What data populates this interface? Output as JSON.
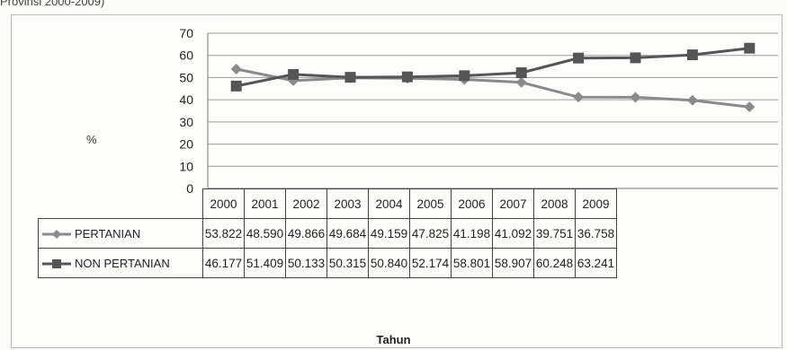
{
  "caption": "Provinsi 2000-2009)",
  "chart_data": {
    "type": "line",
    "title": "",
    "xlabel": "Tahun",
    "ylabel": "%",
    "ylim": [
      0,
      70
    ],
    "yticks": [
      "0",
      "10",
      "20",
      "30",
      "40",
      "50",
      "60",
      "70"
    ],
    "grid": true,
    "legend": "table-left",
    "categories": [
      "2000",
      "2001",
      "2002",
      "2003",
      "2004",
      "2005",
      "2006",
      "2007",
      "2008",
      "2009"
    ],
    "series": [
      {
        "name": "PERTANIAN",
        "marker": "diamond",
        "color": "#8a8a8a",
        "values": [
          53.822,
          48.59,
          49.866,
          49.684,
          49.159,
          47.825,
          41.198,
          41.092,
          39.751,
          36.758
        ],
        "labels": [
          "53.822",
          "48.590",
          "49.866",
          "49.684",
          "49.159",
          "47.825",
          "41.198",
          "41.092",
          "39.751",
          "36.758"
        ]
      },
      {
        "name": "NON PERTANIAN",
        "marker": "square",
        "color": "#555555",
        "values": [
          46.177,
          51.409,
          50.133,
          50.315,
          50.84,
          52.174,
          58.801,
          58.907,
          60.248,
          63.241
        ],
        "labels": [
          "46.177",
          "51.409",
          "50.133",
          "50.315",
          "50.840",
          "52.174",
          "58.801",
          "58.907",
          "60.248",
          "63.241"
        ]
      }
    ]
  }
}
